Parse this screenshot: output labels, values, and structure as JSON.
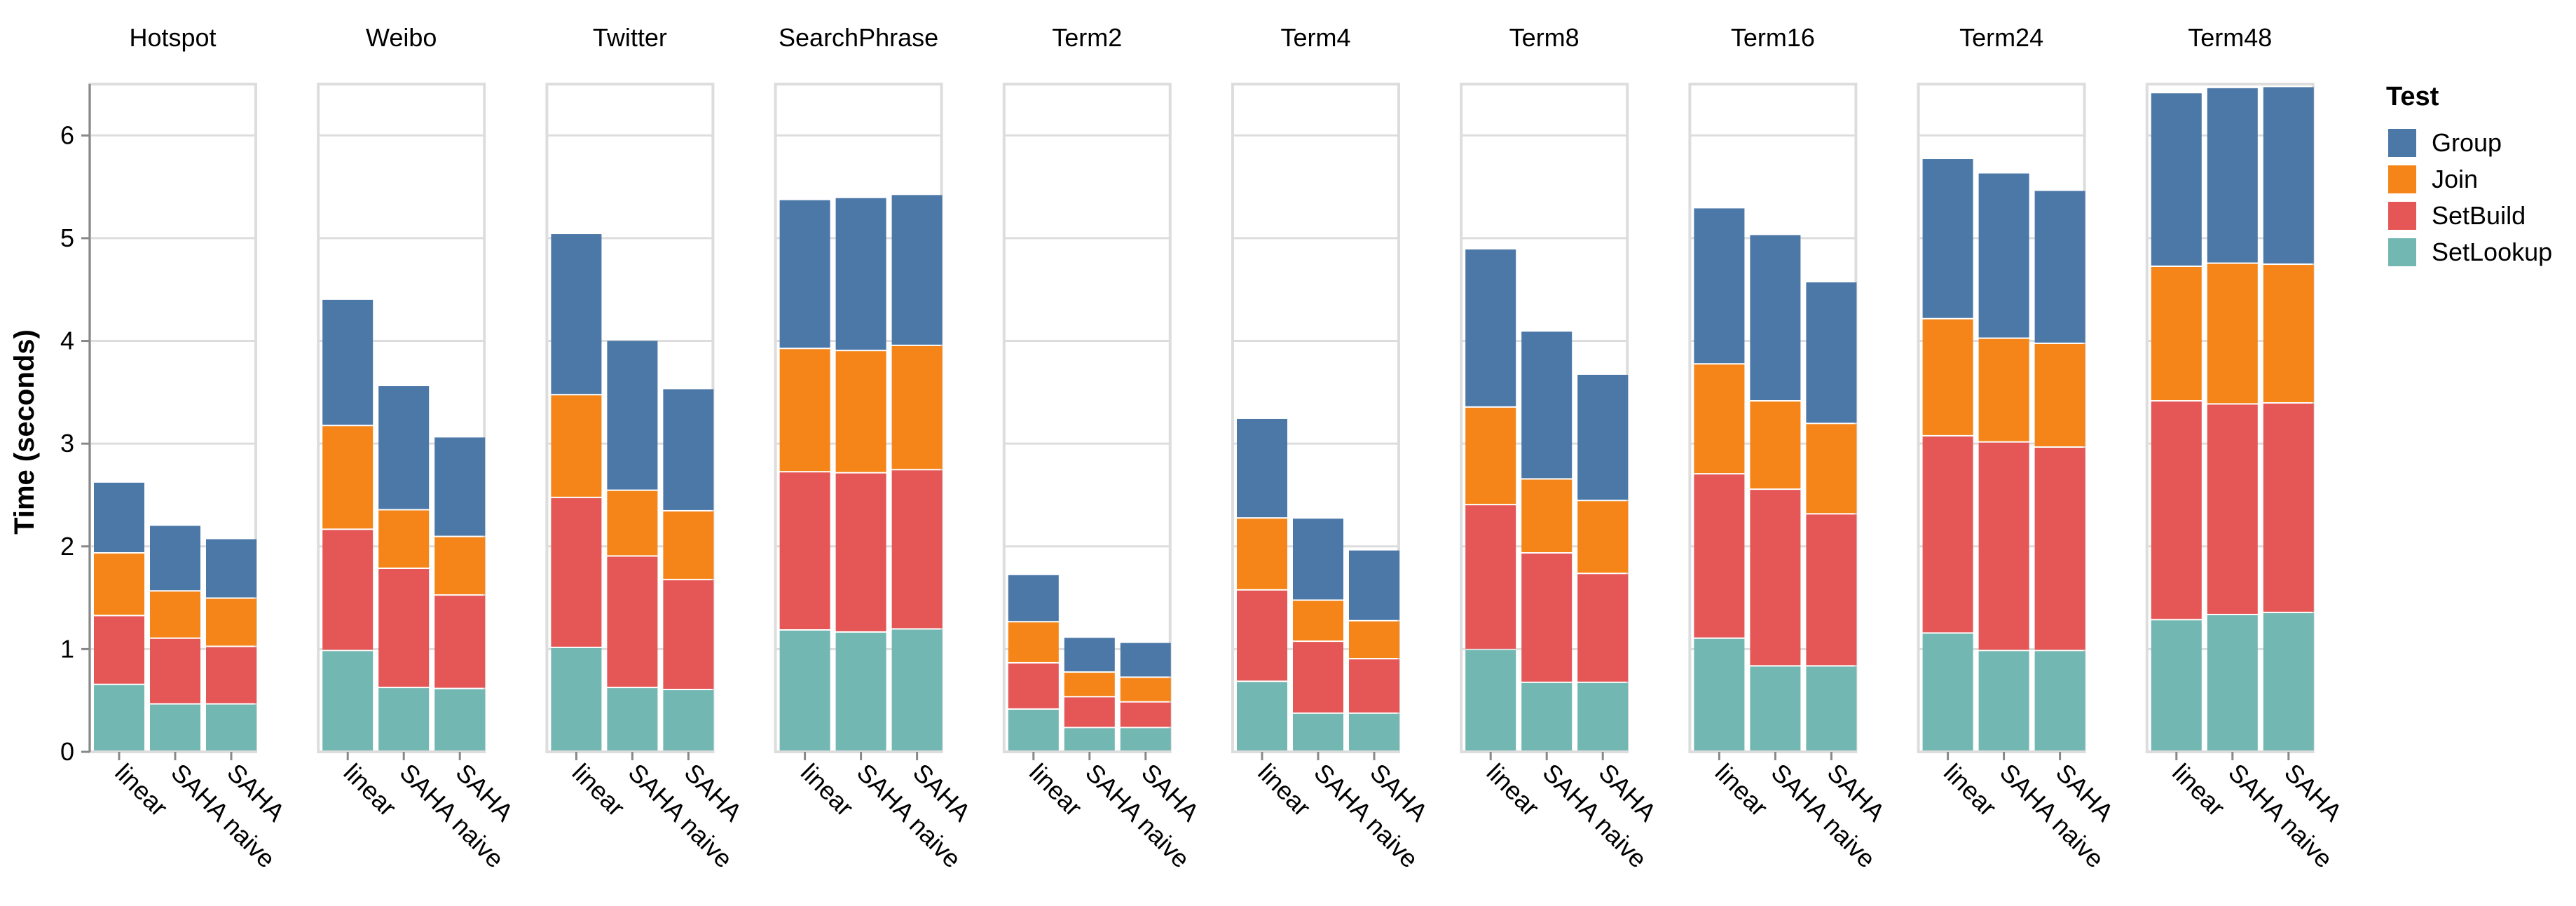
{
  "chart_data": {
    "type": "bar",
    "stacked": true,
    "ylabel": "Time (seconds)",
    "ylim": [
      0,
      6.5
    ],
    "yticks": [
      0,
      1,
      2,
      3,
      4,
      5,
      6
    ],
    "grid": true,
    "legend": {
      "title": "Test",
      "position": "right",
      "entries": [
        {
          "name": "Group",
          "color": "#4c78a8"
        },
        {
          "name": "Join",
          "color": "#f58518"
        },
        {
          "name": "SetBuild",
          "color": "#e45756"
        },
        {
          "name": "SetLookup",
          "color": "#72b7b2"
        }
      ]
    },
    "stack_order": [
      "SetLookup",
      "SetBuild",
      "Join",
      "Group"
    ],
    "categories": [
      "linear",
      "SAHA naive",
      "SAHA"
    ],
    "panels": [
      {
        "title": "Hotspot",
        "bars": [
          {
            "SetLookup": 0.65,
            "SetBuild": 0.67,
            "Join": 0.61,
            "Group": 0.69
          },
          {
            "SetLookup": 0.46,
            "SetBuild": 0.64,
            "Join": 0.46,
            "Group": 0.64
          },
          {
            "SetLookup": 0.46,
            "SetBuild": 0.56,
            "Join": 0.47,
            "Group": 0.58
          }
        ]
      },
      {
        "title": "Weibo",
        "bars": [
          {
            "SetLookup": 0.98,
            "SetBuild": 1.18,
            "Join": 1.01,
            "Group": 1.23
          },
          {
            "SetLookup": 0.62,
            "SetBuild": 1.16,
            "Join": 0.57,
            "Group": 1.21
          },
          {
            "SetLookup": 0.61,
            "SetBuild": 0.91,
            "Join": 0.57,
            "Group": 0.97
          }
        ]
      },
      {
        "title": "Twitter",
        "bars": [
          {
            "SetLookup": 1.01,
            "SetBuild": 1.46,
            "Join": 1.0,
            "Group": 1.57
          },
          {
            "SetLookup": 0.62,
            "SetBuild": 1.28,
            "Join": 0.64,
            "Group": 1.46
          },
          {
            "SetLookup": 0.6,
            "SetBuild": 1.07,
            "Join": 0.67,
            "Group": 1.19
          }
        ]
      },
      {
        "title": "SearchPhrase",
        "bars": [
          {
            "SetLookup": 1.18,
            "SetBuild": 1.54,
            "Join": 1.2,
            "Group": 1.45
          },
          {
            "SetLookup": 1.16,
            "SetBuild": 1.55,
            "Join": 1.19,
            "Group": 1.49
          },
          {
            "SetLookup": 1.19,
            "SetBuild": 1.55,
            "Join": 1.21,
            "Group": 1.47
          }
        ]
      },
      {
        "title": "Term2",
        "bars": [
          {
            "SetLookup": 0.41,
            "SetBuild": 0.45,
            "Join": 0.4,
            "Group": 0.46
          },
          {
            "SetLookup": 0.23,
            "SetBuild": 0.3,
            "Join": 0.24,
            "Group": 0.34
          },
          {
            "SetLookup": 0.23,
            "SetBuild": 0.25,
            "Join": 0.24,
            "Group": 0.34
          }
        ]
      },
      {
        "title": "Term4",
        "bars": [
          {
            "SetLookup": 0.68,
            "SetBuild": 0.89,
            "Join": 0.7,
            "Group": 0.97
          },
          {
            "SetLookup": 0.37,
            "SetBuild": 0.7,
            "Join": 0.4,
            "Group": 0.8
          },
          {
            "SetLookup": 0.37,
            "SetBuild": 0.53,
            "Join": 0.37,
            "Group": 0.69
          }
        ]
      },
      {
        "title": "Term8",
        "bars": [
          {
            "SetLookup": 0.99,
            "SetBuild": 1.41,
            "Join": 0.95,
            "Group": 1.54
          },
          {
            "SetLookup": 0.67,
            "SetBuild": 1.26,
            "Join": 0.72,
            "Group": 1.44
          },
          {
            "SetLookup": 0.67,
            "SetBuild": 1.06,
            "Join": 0.71,
            "Group": 1.23
          }
        ]
      },
      {
        "title": "Term16",
        "bars": [
          {
            "SetLookup": 1.1,
            "SetBuild": 1.6,
            "Join": 1.07,
            "Group": 1.52
          },
          {
            "SetLookup": 0.83,
            "SetBuild": 1.72,
            "Join": 0.86,
            "Group": 1.62
          },
          {
            "SetLookup": 0.83,
            "SetBuild": 1.48,
            "Join": 0.88,
            "Group": 1.38
          }
        ]
      },
      {
        "title": "Term24",
        "bars": [
          {
            "SetLookup": 1.15,
            "SetBuild": 1.92,
            "Join": 1.14,
            "Group": 1.56
          },
          {
            "SetLookup": 0.98,
            "SetBuild": 2.03,
            "Join": 1.01,
            "Group": 1.61
          },
          {
            "SetLookup": 0.98,
            "SetBuild": 1.98,
            "Join": 1.01,
            "Group": 1.49
          }
        ]
      },
      {
        "title": "Term48",
        "bars": [
          {
            "SetLookup": 1.28,
            "SetBuild": 2.13,
            "Join": 1.31,
            "Group": 1.69
          },
          {
            "SetLookup": 1.33,
            "SetBuild": 2.05,
            "Join": 1.37,
            "Group": 1.71
          },
          {
            "SetLookup": 1.35,
            "SetBuild": 2.04,
            "Join": 1.35,
            "Group": 1.73
          }
        ]
      }
    ]
  }
}
